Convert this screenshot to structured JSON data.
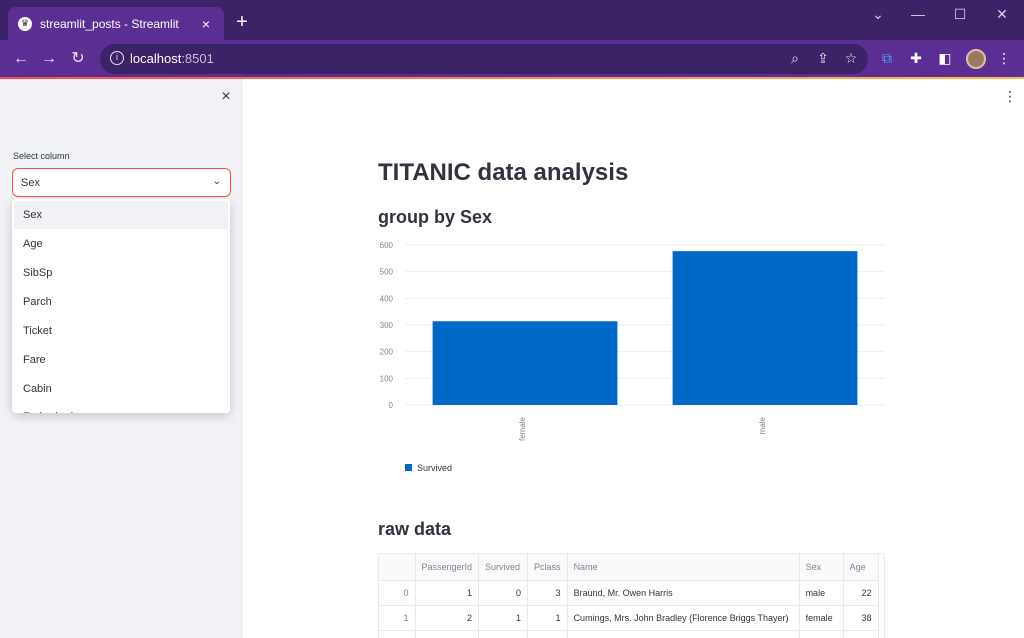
{
  "browser": {
    "tab_title": "streamlit_posts - Streamlit",
    "url_host": "localhost",
    "url_port": ":8501"
  },
  "icons": {
    "favicon": "streamlit-crown-icon",
    "close": "close-icon",
    "new_tab": "plus-icon",
    "back": "arrow-left-icon",
    "forward": "arrow-right-icon",
    "reload": "reload-icon",
    "info": "info-icon",
    "zoom": "zoom-icon",
    "share": "share-icon",
    "bookmark": "star-icon",
    "extensions": "puzzle-icon",
    "menu": "kebab-icon"
  },
  "sidebar": {
    "close_glyph": "×",
    "select_label": "Select column",
    "select_value": "Sex",
    "options": [
      "Sex",
      "Age",
      "SibSp",
      "Parch",
      "Ticket",
      "Fare",
      "Cabin",
      "Embarked"
    ]
  },
  "main": {
    "title": "TITANIC data analysis",
    "chart_heading": "group by Sex",
    "table_heading": "raw data"
  },
  "chart_data": {
    "type": "bar",
    "categories": [
      "female",
      "male"
    ],
    "series": [
      {
        "name": "Survived",
        "values": [
          314,
          577
        ]
      }
    ],
    "yticks": [
      "0",
      "100",
      "200",
      "300",
      "400",
      "500",
      "600"
    ],
    "ylim": [
      0,
      600
    ],
    "legend": "bottom-left",
    "colors": {
      "bar": "#0068c9",
      "grid": "#eeeeee",
      "tick": "#808495"
    }
  },
  "table": {
    "columns": [
      "",
      "PassengerId",
      "Survived",
      "Pclass",
      "Name",
      "Sex",
      "Age"
    ],
    "rows": [
      [
        "0",
        "1",
        "0",
        "3",
        "Braund, Mr. Owen Harris",
        "male",
        "22"
      ],
      [
        "1",
        "2",
        "1",
        "1",
        "Cumings, Mrs. John Bradley (Florence Briggs Thayer)",
        "female",
        "38"
      ]
    ]
  },
  "colors": {
    "accent": "#ff4b4b",
    "browser_frame": "#5b2e93",
    "browser_dark": "#3c2266"
  }
}
